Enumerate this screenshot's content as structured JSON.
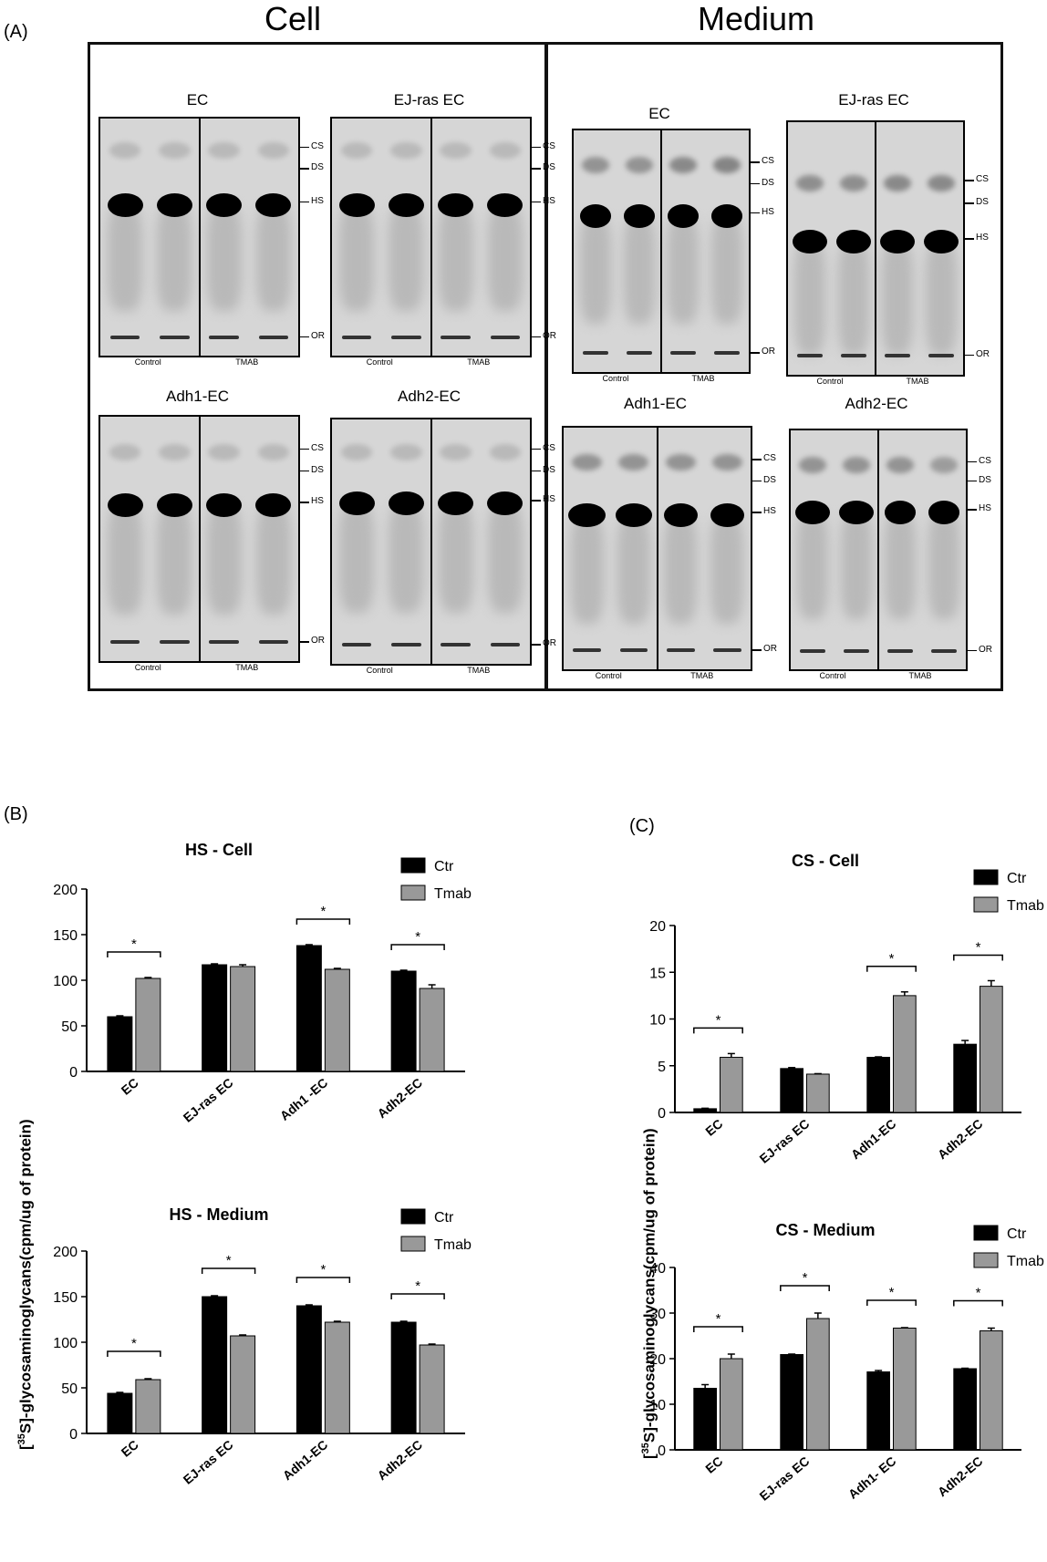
{
  "panels": {
    "a": "(A)",
    "b": "(B)",
    "c": "(C)"
  },
  "gels": {
    "cell_title": "Cell",
    "medium_title": "Medium",
    "markers": [
      "CS",
      "DS",
      "HS",
      "OR"
    ],
    "lanes": [
      "Control",
      "TMAB"
    ],
    "blots": [
      {
        "title": "EC"
      },
      {
        "title": "EJ-ras EC"
      },
      {
        "title": "Adh1-EC"
      },
      {
        "title": "Adh2-EC"
      },
      {
        "title": "EC"
      },
      {
        "title": "EJ-ras EC"
      },
      {
        "title": "Adh1-EC"
      },
      {
        "title": "Adh2-EC"
      }
    ]
  },
  "y_axis_label_b": "[35S]-glycosaminoglycans(cpm/ug of protein)",
  "y_axis_label_c": "[35S]-glycosaminoglycans(cpm/ug of protein)",
  "chart_data": [
    {
      "type": "bar",
      "title": "HS - Cell",
      "categories": [
        "EC",
        "EJ-ras EC",
        "Adh1 -EC",
        "Adh2-EC"
      ],
      "series": [
        {
          "name": "Ctr",
          "values": [
            60,
            117,
            138,
            110
          ],
          "errors": [
            1,
            1,
            1,
            1
          ],
          "color": "#000000"
        },
        {
          "name": "Tmab",
          "values": [
            102,
            115,
            112,
            91
          ],
          "errors": [
            1,
            2,
            1,
            4
          ],
          "color": "#999999"
        }
      ],
      "significance": [
        true,
        false,
        true,
        true
      ],
      "ylim": [
        0,
        200
      ],
      "yticks": [
        0,
        50,
        100,
        150,
        200
      ],
      "legend": "top-right"
    },
    {
      "type": "bar",
      "title": "HS - Medium",
      "categories": [
        "EC",
        "EJ-ras EC",
        "Adh1-EC",
        "Adh2-EC"
      ],
      "series": [
        {
          "name": "Ctr",
          "values": [
            44,
            150,
            140,
            122
          ],
          "errors": [
            1,
            1,
            1,
            1
          ],
          "color": "#000000"
        },
        {
          "name": "Tmab",
          "values": [
            59,
            107,
            122,
            97
          ],
          "errors": [
            1,
            1,
            1,
            1
          ],
          "color": "#999999"
        }
      ],
      "significance": [
        true,
        true,
        true,
        true
      ],
      "ylim": [
        0,
        200
      ],
      "yticks": [
        0,
        50,
        100,
        150,
        200
      ],
      "legend": "top-right"
    },
    {
      "type": "bar",
      "title": "CS - Cell",
      "categories": [
        "EC",
        "EJ-ras EC",
        "Adh1-EC",
        "Adh2-EC"
      ],
      "series": [
        {
          "name": "Ctr",
          "values": [
            0.4,
            4.7,
            5.9,
            7.3
          ],
          "errors": [
            0.05,
            0.1,
            0.05,
            0.4
          ],
          "color": "#000000"
        },
        {
          "name": "Tmab",
          "values": [
            5.9,
            4.1,
            12.5,
            13.5
          ],
          "errors": [
            0.4,
            0.05,
            0.4,
            0.6
          ],
          "color": "#999999"
        }
      ],
      "significance": [
        true,
        false,
        true,
        true
      ],
      "ylim": [
        0,
        20
      ],
      "yticks": [
        0,
        5,
        10,
        15,
        20
      ],
      "legend": "top-right"
    },
    {
      "type": "bar",
      "title": "CS - Medium",
      "categories": [
        "EC",
        "EJ-ras EC",
        "Adh1- EC",
        "Adh2-EC"
      ],
      "series": [
        {
          "name": "Ctr",
          "values": [
            13.5,
            20.9,
            17.1,
            17.8
          ],
          "errors": [
            0.8,
            0.1,
            0.3,
            0.1
          ],
          "color": "#000000"
        },
        {
          "name": "Tmab",
          "values": [
            20,
            28.8,
            26.7,
            26.1
          ],
          "errors": [
            1,
            1.2,
            0.1,
            0.6
          ],
          "color": "#999999"
        }
      ],
      "significance": [
        true,
        true,
        true,
        true
      ],
      "ylim": [
        0,
        40
      ],
      "yticks": [
        0,
        10,
        20,
        30,
        40
      ],
      "legend": "top-right"
    }
  ]
}
